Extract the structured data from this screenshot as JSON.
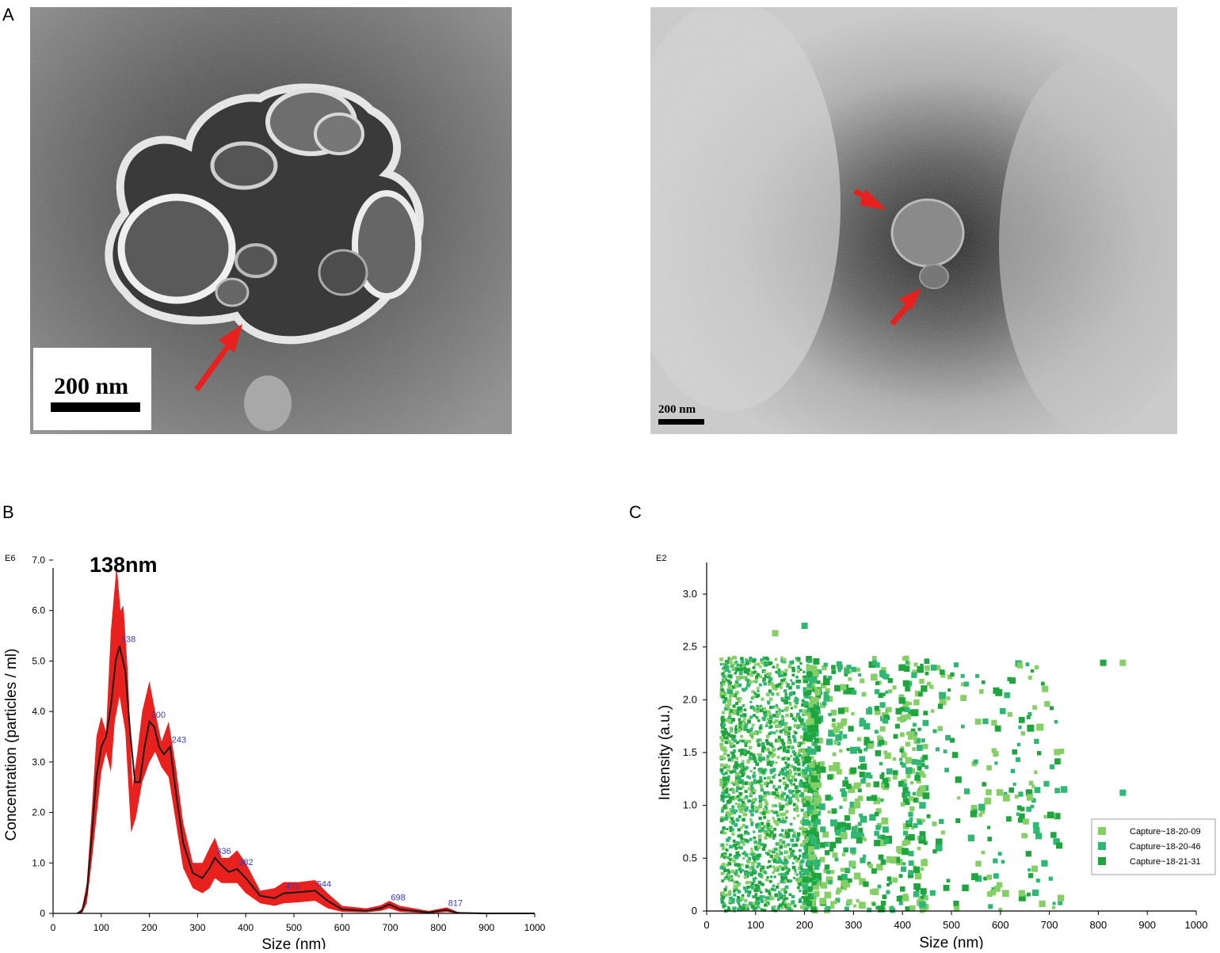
{
  "panels": {
    "a": "A",
    "b": "B",
    "c": "C"
  },
  "micrographs": {
    "left": {
      "scalebar_label": "200 nm"
    },
    "right": {
      "scalebar_label": "200 nm"
    }
  },
  "colors": {
    "arrow": "#e8201e",
    "nta_fill": "#e8201e",
    "nta_line": "#1a1a1a",
    "peak_label": "#3b3bb0",
    "series": [
      "#86cf67",
      "#2fb874",
      "#20a43e"
    ]
  },
  "chart_b": {
    "type": "area",
    "exponent": "E6",
    "annotation": "138nm",
    "ylabel": "Concentration (particles / ml)",
    "xlabel": "Size (nm)",
    "xlim": [
      0,
      1000
    ],
    "ylim": [
      0,
      7.0
    ],
    "xticks": [
      "0",
      "100",
      "200",
      "300",
      "400",
      "500",
      "600",
      "700",
      "800",
      "900",
      "1000"
    ],
    "yticks": [
      "0",
      "1.0",
      "2.0",
      "3.0",
      "4.0",
      "5.0",
      "6.0",
      "7.0"
    ],
    "mean_curve": [
      [
        50,
        0
      ],
      [
        60,
        0.05
      ],
      [
        70,
        0.4
      ],
      [
        80,
        1.5
      ],
      [
        90,
        2.7
      ],
      [
        100,
        3.3
      ],
      [
        110,
        3.5
      ],
      [
        120,
        4.1
      ],
      [
        130,
        5.0
      ],
      [
        138,
        5.3
      ],
      [
        150,
        4.8
      ],
      [
        160,
        3.6
      ],
      [
        170,
        2.6
      ],
      [
        180,
        2.6
      ],
      [
        190,
        3.3
      ],
      [
        200,
        3.8
      ],
      [
        210,
        3.7
      ],
      [
        220,
        3.3
      ],
      [
        230,
        3.15
      ],
      [
        243,
        3.3
      ],
      [
        255,
        2.4
      ],
      [
        270,
        1.4
      ],
      [
        290,
        0.8
      ],
      [
        310,
        0.7
      ],
      [
        325,
        0.9
      ],
      [
        336,
        1.1
      ],
      [
        350,
        0.95
      ],
      [
        365,
        0.82
      ],
      [
        382,
        0.88
      ],
      [
        400,
        0.7
      ],
      [
        430,
        0.35
      ],
      [
        460,
        0.3
      ],
      [
        479,
        0.4
      ],
      [
        510,
        0.42
      ],
      [
        544,
        0.45
      ],
      [
        570,
        0.25
      ],
      [
        600,
        0.08
      ],
      [
        650,
        0.05
      ],
      [
        680,
        0.1
      ],
      [
        698,
        0.18
      ],
      [
        720,
        0.08
      ],
      [
        780,
        0.02
      ],
      [
        817,
        0.07
      ],
      [
        840,
        0.01
      ],
      [
        900,
        0
      ],
      [
        1000,
        0
      ]
    ],
    "upper_curve": [
      [
        50,
        0
      ],
      [
        60,
        0.1
      ],
      [
        70,
        0.6
      ],
      [
        80,
        2.0
      ],
      [
        90,
        3.5
      ],
      [
        100,
        3.9
      ],
      [
        110,
        3.6
      ],
      [
        120,
        5.6
      ],
      [
        132,
        6.9
      ],
      [
        140,
        6.0
      ],
      [
        146,
        6.1
      ],
      [
        155,
        4.8
      ],
      [
        165,
        2.5
      ],
      [
        175,
        3.2
      ],
      [
        185,
        4.0
      ],
      [
        200,
        4.6
      ],
      [
        212,
        4.0
      ],
      [
        225,
        3.4
      ],
      [
        240,
        3.8
      ],
      [
        255,
        2.9
      ],
      [
        270,
        1.8
      ],
      [
        290,
        1.0
      ],
      [
        310,
        1.0
      ],
      [
        325,
        1.3
      ],
      [
        336,
        1.5
      ],
      [
        350,
        1.1
      ],
      [
        365,
        1.1
      ],
      [
        382,
        1.25
      ],
      [
        400,
        1.0
      ],
      [
        430,
        0.45
      ],
      [
        460,
        0.5
      ],
      [
        479,
        0.62
      ],
      [
        510,
        0.62
      ],
      [
        544,
        0.66
      ],
      [
        570,
        0.4
      ],
      [
        600,
        0.15
      ],
      [
        650,
        0.1
      ],
      [
        680,
        0.16
      ],
      [
        698,
        0.25
      ],
      [
        720,
        0.15
      ],
      [
        780,
        0.05
      ],
      [
        817,
        0.12
      ],
      [
        840,
        0.03
      ],
      [
        900,
        0
      ],
      [
        1000,
        0
      ]
    ],
    "lower_curve": [
      [
        50,
        0
      ],
      [
        60,
        0
      ],
      [
        70,
        0.2
      ],
      [
        80,
        1.0
      ],
      [
        90,
        1.9
      ],
      [
        100,
        2.8
      ],
      [
        110,
        3.2
      ],
      [
        120,
        2.8
      ],
      [
        128,
        3.8
      ],
      [
        138,
        4.3
      ],
      [
        150,
        3.6
      ],
      [
        162,
        1.6
      ],
      [
        172,
        1.9
      ],
      [
        185,
        2.6
      ],
      [
        200,
        3.0
      ],
      [
        212,
        3.2
      ],
      [
        225,
        2.9
      ],
      [
        240,
        2.7
      ],
      [
        255,
        1.8
      ],
      [
        270,
        0.9
      ],
      [
        290,
        0.5
      ],
      [
        310,
        0.4
      ],
      [
        325,
        0.5
      ],
      [
        336,
        0.7
      ],
      [
        350,
        0.6
      ],
      [
        365,
        0.6
      ],
      [
        382,
        0.6
      ],
      [
        400,
        0.4
      ],
      [
        430,
        0.2
      ],
      [
        460,
        0.15
      ],
      [
        479,
        0.2
      ],
      [
        510,
        0.22
      ],
      [
        544,
        0.25
      ],
      [
        570,
        0.1
      ],
      [
        600,
        0.03
      ],
      [
        650,
        0.02
      ],
      [
        680,
        0.05
      ],
      [
        698,
        0.1
      ],
      [
        720,
        0.03
      ],
      [
        780,
        0
      ],
      [
        817,
        0.03
      ],
      [
        840,
        0
      ],
      [
        900,
        0
      ],
      [
        1000,
        0
      ]
    ],
    "peak_labels": [
      {
        "x": 138,
        "y": 5.3,
        "text": "138"
      },
      {
        "x": 200,
        "y": 3.8,
        "text": "200"
      },
      {
        "x": 243,
        "y": 3.3,
        "text": "243"
      },
      {
        "x": 336,
        "y": 1.1,
        "text": "336"
      },
      {
        "x": 382,
        "y": 0.88,
        "text": "382"
      },
      {
        "x": 479,
        "y": 0.4,
        "text": "479"
      },
      {
        "x": 544,
        "y": 0.45,
        "text": "544"
      },
      {
        "x": 698,
        "y": 0.18,
        "text": "698"
      },
      {
        "x": 817,
        "y": 0.07,
        "text": "817"
      }
    ]
  },
  "chart_c": {
    "type": "scatter",
    "exponent": "E2",
    "ylabel": "Intensity (a.u.)",
    "xlabel": "Size (nm)",
    "xlim": [
      0,
      1000
    ],
    "ylim": [
      0,
      3.3
    ],
    "xticks": [
      "0",
      "100",
      "200",
      "300",
      "400",
      "500",
      "600",
      "700",
      "800",
      "900",
      "1000"
    ],
    "yticks": [
      "0",
      "0.5",
      "1.0",
      "1.5",
      "2.0",
      "2.5",
      "3.0"
    ],
    "legend": [
      "Capture~18-20-09",
      "Capture~18-20-46",
      "Capture~18-21-31"
    ],
    "legend_position": "bottom-right",
    "outliers": [
      [
        140,
        2.63
      ],
      [
        200,
        2.7
      ],
      [
        810,
        2.35
      ],
      [
        850,
        2.35
      ],
      [
        850,
        1.12
      ],
      [
        720,
        0.62
      ],
      [
        670,
        0.4
      ]
    ]
  }
}
